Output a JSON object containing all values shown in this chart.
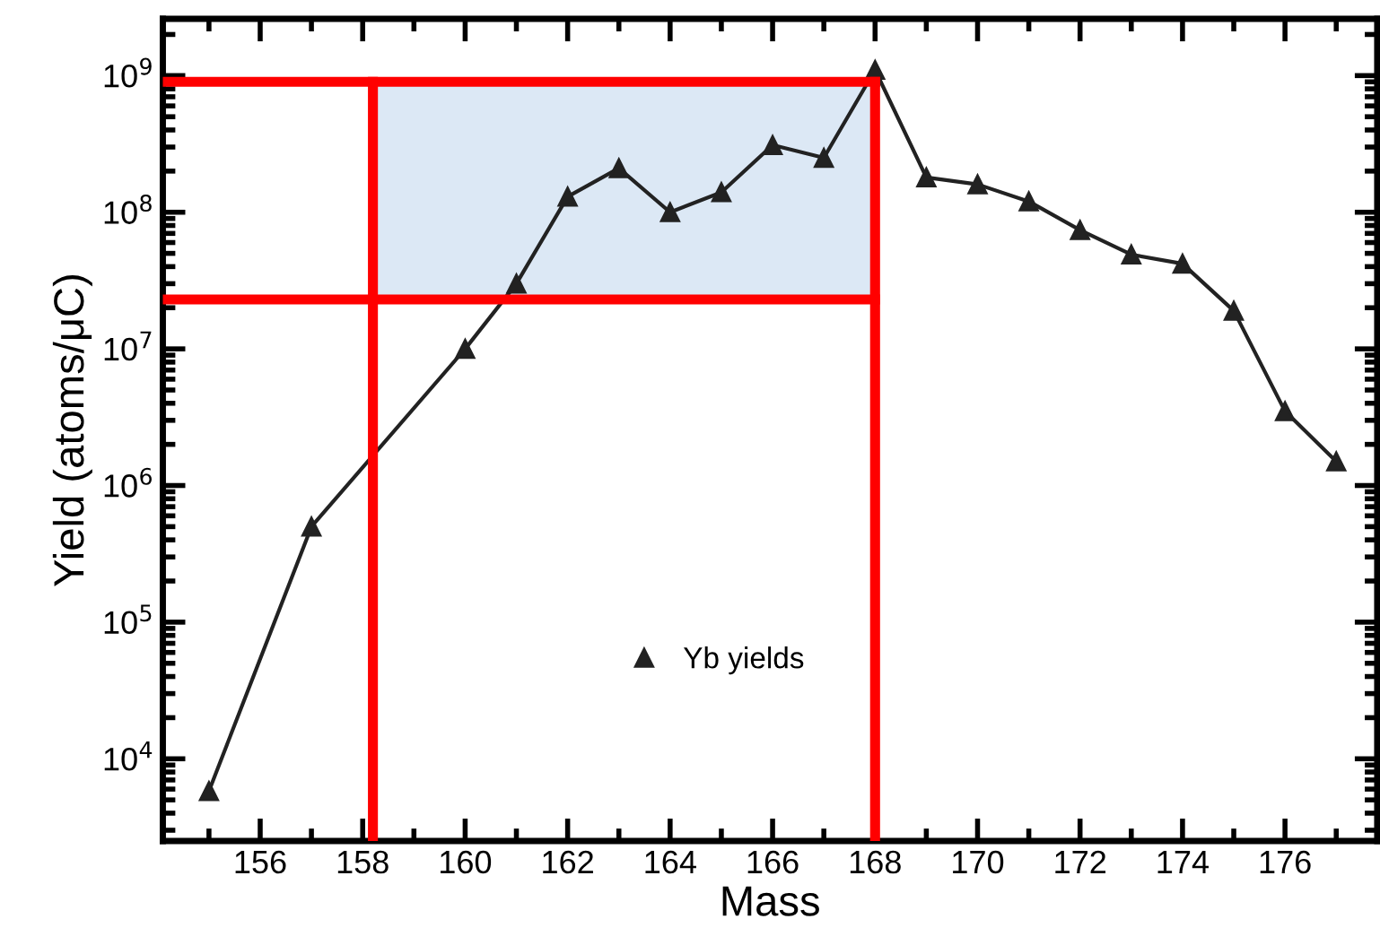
{
  "chart_data": {
    "type": "line",
    "xlabel": "Mass",
    "ylabel": "Yield (atoms/μC)",
    "log": "y",
    "marker": "triangle",
    "line_style": "solid",
    "legend": "bottom",
    "grid": false,
    "x": [
      155,
      157,
      160,
      161,
      162,
      163,
      164,
      165,
      166,
      167,
      168,
      169,
      170,
      171,
      172,
      173,
      174,
      175,
      176,
      177
    ],
    "series": [
      {
        "name": "Yb yields",
        "color": "#222222",
        "values": [
          5800,
          500000,
          10000000,
          30000000,
          130000000,
          210000000,
          100000000,
          140000000,
          310000000,
          250000000,
          1100000000,
          180000000,
          160000000,
          120000000,
          74000000,
          49000000,
          42000000,
          19000000,
          3500000,
          1500000
        ]
      }
    ],
    "xlim": [
      154.1,
      177.8
    ],
    "ylim": [
      2500,
      2600000000
    ],
    "xticks": [
      {
        "value": 155,
        "label": null
      },
      156,
      {
        "value": 157,
        "label": null
      },
      158,
      {
        "value": 159,
        "label": null
      },
      160,
      {
        "value": 161,
        "label": null
      },
      162,
      {
        "value": 163,
        "label": null
      },
      164,
      {
        "value": 165,
        "label": null
      },
      166,
      {
        "value": 167,
        "label": null
      },
      168,
      {
        "value": 169,
        "label": null
      },
      170,
      {
        "value": 171,
        "label": null
      },
      172,
      {
        "value": 173,
        "label": null
      },
      174,
      {
        "value": 175,
        "label": null
      },
      176,
      {
        "value": 177,
        "label": null
      }
    ],
    "yticks": [
      {
        "value": 10000,
        "label": "10$^{4}$"
      },
      {
        "value": 100000,
        "label": "10$^{5}$"
      },
      {
        "value": 1000000,
        "label": "10$^{6}$"
      },
      {
        "value": 10000000,
        "label": "10$^{7}$"
      },
      {
        "value": 100000000,
        "label": "10$^{8}$"
      },
      {
        "value": 1000000000,
        "label": "10$^{9}$"
      }
    ],
    "ref_lines": [
      {
        "axis": "x",
        "value": 158.2,
        "color": "#ff0000"
      },
      {
        "axis": "x",
        "value": 168,
        "color": "#ff0000"
      },
      {
        "axis": "y",
        "value": 900000000,
        "color": "#ff0000"
      },
      {
        "axis": "y",
        "value": 23000000,
        "color": "#ff0000"
      }
    ],
    "bands": [
      {
        "axis": "x",
        "from": 158.2,
        "to": 168,
        "color": "#dce8f5"
      }
    ]
  }
}
